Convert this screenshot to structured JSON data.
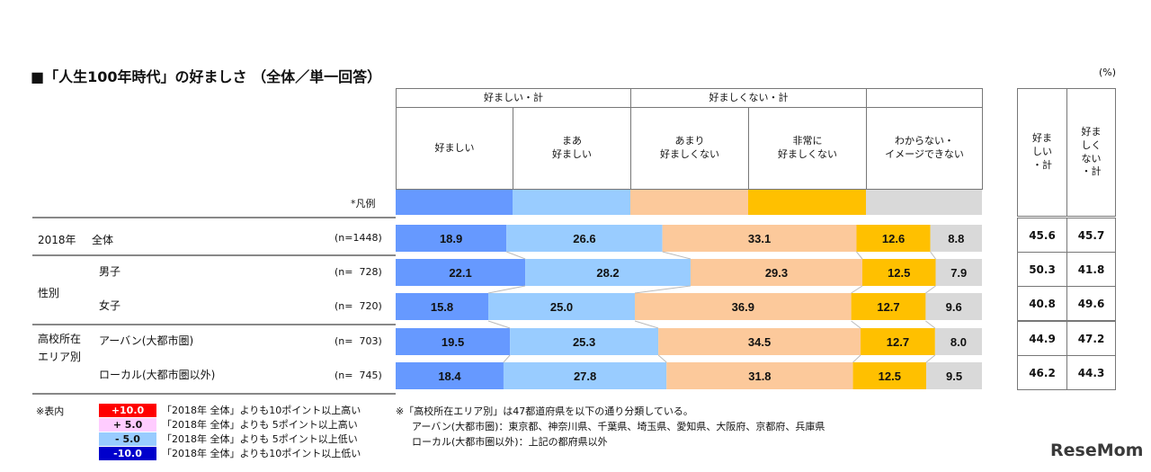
{
  "title": "■「人生100年時代」の好ましさ （全体／単一回答）",
  "unit": "(%)",
  "chart_data": {
    "type": "bar",
    "stacked": true,
    "orientation": "horizontal",
    "group_headers": [
      "好ましい・計",
      "好ましくない・計"
    ],
    "legend_label": "*凡例",
    "series": [
      {
        "name": "好ましい",
        "color": "#6699ff",
        "values": [
          18.9,
          22.1,
          15.8,
          19.5,
          18.4
        ]
      },
      {
        "name": "まあ\n好ましい",
        "color": "#99ccff",
        "values": [
          26.6,
          28.2,
          25.0,
          25.3,
          27.8
        ]
      },
      {
        "name": "あまり\n好ましくない",
        "color": "#fcc99b",
        "values": [
          33.1,
          29.3,
          36.9,
          34.5,
          31.8
        ]
      },
      {
        "name": "非常に\n好ましくない",
        "color": "#ffc000",
        "values": [
          12.6,
          12.5,
          12.7,
          12.7,
          12.5
        ]
      },
      {
        "name": "わからない・\nイメージできない",
        "color": "#d9d9d9",
        "values": [
          8.8,
          7.9,
          9.6,
          8.0,
          9.5
        ]
      }
    ],
    "categories": [
      {
        "group": "2018年",
        "label": "全体",
        "n": "(n=1448)"
      },
      {
        "group": "性別",
        "label": "男子",
        "n": "(n=  728)"
      },
      {
        "group": "",
        "label": "女子",
        "n": "(n=  720)"
      },
      {
        "group": "高校所在\nエリア別",
        "label": "アーバン(大都市圏)",
        "n": "(n=  703)"
      },
      {
        "group": "",
        "label": "ローカル(大都市圏以外)",
        "n": "(n=  745)"
      }
    ],
    "totals_headers": [
      "好ま\nしい\n・計",
      "好ま\nしく\nない\n・計"
    ],
    "totals": [
      [
        45.6,
        45.7
      ],
      [
        50.3,
        41.8
      ],
      [
        40.8,
        49.6
      ],
      [
        44.9,
        47.2
      ],
      [
        46.2,
        44.3
      ]
    ],
    "xlim": [
      0,
      100
    ]
  },
  "notes": {
    "label": "※表内",
    "items": [
      {
        "box": "+10.0",
        "bg": "#ff0000",
        "fg": "#ffffff",
        "text": "「2018年 全体」よりも10ポイント以上高い"
      },
      {
        "box": "+ 5.0",
        "bg": "#ffccff",
        "fg": "#111111",
        "text": "「2018年 全体」よりも 5ポイント以上高い"
      },
      {
        "box": "- 5.0",
        "bg": "#99ccff",
        "fg": "#111111",
        "text": "「2018年 全体」よりも 5ポイント以上低い"
      },
      {
        "box": "-10.0",
        "bg": "#0000cc",
        "fg": "#ffffff",
        "text": "「2018年 全体」よりも10ポイント以上低い"
      }
    ],
    "area_note": [
      "※「高校所在エリア別」は47都道府県を以下の通り分類している。",
      "アーバン(大都市圏)：東京都、神奈川県、千葉県、埼玉県、愛知県、大阪府、京都府、兵庫県",
      "ローカル(大都市圏以外)：上記の都府県以外"
    ]
  },
  "logo": "ReseMom"
}
